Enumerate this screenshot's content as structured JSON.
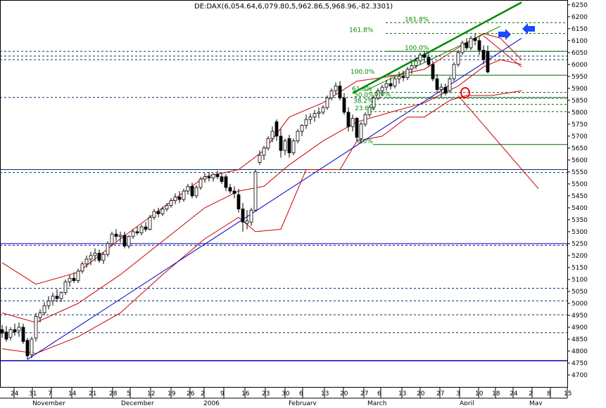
{
  "chart_data": {
    "type": "candlestick",
    "title": "DE:DAX(6,054.64,6,079.80,5,962.86,5,968.96,-82.3301)",
    "ylim": [
      4650,
      6270
    ],
    "y_ticks": [
      4700,
      4750,
      4800,
      4850,
      4900,
      4950,
      5000,
      5050,
      5100,
      5150,
      5200,
      5250,
      5300,
      5350,
      5400,
      5450,
      5500,
      5550,
      5600,
      5650,
      5700,
      5750,
      5800,
      5850,
      5900,
      5950,
      6000,
      6050,
      6100,
      6150,
      6200,
      6250
    ],
    "x_day_ticks": [
      "24",
      "31",
      "7",
      "14",
      "21",
      "28",
      "5",
      "12",
      "19",
      "26",
      "2",
      "9",
      "16",
      "23",
      "30",
      "6",
      "13",
      "20",
      "27",
      "6",
      "13",
      "20",
      "27",
      "3",
      "10",
      "18",
      "24",
      "2",
      "8",
      "15"
    ],
    "x_month_labels": [
      "November",
      "December",
      "2006",
      "February",
      "March",
      "April",
      "May"
    ],
    "fib_retracements": [
      {
        "label": "161.8%",
        "level": 6175
      },
      {
        "label": "161.8%",
        "level": 6130
      },
      {
        "label": "100.0%",
        "level": 6055
      },
      {
        "label": "100.0%",
        "level": 5955
      },
      {
        "label": "61.8%",
        "level": 5883
      },
      {
        "label": "50.0%",
        "level": 5858
      },
      {
        "label": "38.2%",
        "level": 5833
      },
      {
        "label": "23.6%",
        "level": 5803
      },
      {
        "label": "0.0%",
        "level": 5665
      },
      {
        "label": "0.0%",
        "level": 5862
      }
    ],
    "horizontal_levels": [
      6055,
      6035,
      6020,
      5862,
      5560,
      5548,
      5250,
      5243,
      5063,
      5010,
      4952,
      4877,
      4760
    ],
    "candles": [
      {
        "o": 4890,
        "h": 4910,
        "l": 4855,
        "c": 4875
      },
      {
        "o": 4880,
        "h": 4905,
        "l": 4840,
        "c": 4850
      },
      {
        "o": 4858,
        "h": 4900,
        "l": 4845,
        "c": 4890
      },
      {
        "o": 4890,
        "h": 4915,
        "l": 4865,
        "c": 4880
      },
      {
        "o": 4885,
        "h": 4920,
        "l": 4860,
        "c": 4900
      },
      {
        "o": 4900,
        "h": 4915,
        "l": 4830,
        "c": 4840
      },
      {
        "o": 4845,
        "h": 4855,
        "l": 4765,
        "c": 4780
      },
      {
        "o": 4785,
        "h": 4860,
        "l": 4770,
        "c": 4850
      },
      {
        "o": 4855,
        "h": 4960,
        "l": 4840,
        "c": 4945
      },
      {
        "o": 4940,
        "h": 4975,
        "l": 4920,
        "c": 4960
      },
      {
        "o": 4960,
        "h": 5005,
        "l": 4950,
        "c": 4990
      },
      {
        "o": 4990,
        "h": 5030,
        "l": 4975,
        "c": 5010
      },
      {
        "o": 5010,
        "h": 5045,
        "l": 4990,
        "c": 5030
      },
      {
        "o": 5030,
        "h": 5060,
        "l": 5005,
        "c": 5020
      },
      {
        "o": 5020,
        "h": 5050,
        "l": 5005,
        "c": 5045
      },
      {
        "o": 5045,
        "h": 5100,
        "l": 5035,
        "c": 5090
      },
      {
        "o": 5090,
        "h": 5120,
        "l": 5070,
        "c": 5105
      },
      {
        "o": 5105,
        "h": 5130,
        "l": 5085,
        "c": 5095
      },
      {
        "o": 5095,
        "h": 5145,
        "l": 5085,
        "c": 5135
      },
      {
        "o": 5135,
        "h": 5175,
        "l": 5125,
        "c": 5165
      },
      {
        "o": 5165,
        "h": 5200,
        "l": 5150,
        "c": 5185
      },
      {
        "o": 5185,
        "h": 5215,
        "l": 5160,
        "c": 5200
      },
      {
        "o": 5200,
        "h": 5230,
        "l": 5175,
        "c": 5210
      },
      {
        "o": 5210,
        "h": 5225,
        "l": 5170,
        "c": 5180
      },
      {
        "o": 5180,
        "h": 5215,
        "l": 5165,
        "c": 5205
      },
      {
        "o": 5205,
        "h": 5260,
        "l": 5195,
        "c": 5250
      },
      {
        "o": 5250,
        "h": 5300,
        "l": 5240,
        "c": 5290
      },
      {
        "o": 5290,
        "h": 5310,
        "l": 5260,
        "c": 5280
      },
      {
        "o": 5280,
        "h": 5300,
        "l": 5255,
        "c": 5285
      },
      {
        "o": 5285,
        "h": 5300,
        "l": 5230,
        "c": 5240
      },
      {
        "o": 5240,
        "h": 5285,
        "l": 5230,
        "c": 5280
      },
      {
        "o": 5280,
        "h": 5310,
        "l": 5270,
        "c": 5300
      },
      {
        "o": 5300,
        "h": 5320,
        "l": 5285,
        "c": 5295
      },
      {
        "o": 5295,
        "h": 5330,
        "l": 5285,
        "c": 5320
      },
      {
        "o": 5320,
        "h": 5340,
        "l": 5300,
        "c": 5310
      },
      {
        "o": 5310,
        "h": 5370,
        "l": 5305,
        "c": 5360
      },
      {
        "o": 5360,
        "h": 5395,
        "l": 5350,
        "c": 5385
      },
      {
        "o": 5385,
        "h": 5400,
        "l": 5360,
        "c": 5375
      },
      {
        "o": 5375,
        "h": 5405,
        "l": 5365,
        "c": 5395
      },
      {
        "o": 5395,
        "h": 5420,
        "l": 5385,
        "c": 5410
      },
      {
        "o": 5410,
        "h": 5440,
        "l": 5400,
        "c": 5430
      },
      {
        "o": 5430,
        "h": 5460,
        "l": 5415,
        "c": 5445
      },
      {
        "o": 5445,
        "h": 5470,
        "l": 5420,
        "c": 5435
      },
      {
        "o": 5435,
        "h": 5480,
        "l": 5425,
        "c": 5470
      },
      {
        "o": 5470,
        "h": 5500,
        "l": 5455,
        "c": 5490
      },
      {
        "o": 5490,
        "h": 5505,
        "l": 5440,
        "c": 5450
      },
      {
        "o": 5450,
        "h": 5495,
        "l": 5440,
        "c": 5485
      },
      {
        "o": 5485,
        "h": 5530,
        "l": 5475,
        "c": 5520
      },
      {
        "o": 5520,
        "h": 5545,
        "l": 5505,
        "c": 5530
      },
      {
        "o": 5530,
        "h": 5550,
        "l": 5510,
        "c": 5525
      },
      {
        "o": 5525,
        "h": 5545,
        "l": 5510,
        "c": 5540
      },
      {
        "o": 5540,
        "h": 5555,
        "l": 5520,
        "c": 5530
      },
      {
        "o": 5530,
        "h": 5545,
        "l": 5500,
        "c": 5510
      },
      {
        "o": 5530,
        "h": 5540,
        "l": 5470,
        "c": 5485
      },
      {
        "o": 5485,
        "h": 5500,
        "l": 5460,
        "c": 5470
      },
      {
        "o": 5470,
        "h": 5490,
        "l": 5440,
        "c": 5460
      },
      {
        "o": 5455,
        "h": 5480,
        "l": 5380,
        "c": 5395
      },
      {
        "o": 5395,
        "h": 5420,
        "l": 5300,
        "c": 5340
      },
      {
        "o": 5335,
        "h": 5390,
        "l": 5310,
        "c": 5345
      },
      {
        "o": 5340,
        "h": 5400,
        "l": 5325,
        "c": 5390
      },
      {
        "o": 5390,
        "h": 5560,
        "l": 5385,
        "c": 5550
      },
      {
        "o": 5590,
        "h": 5640,
        "l": 5580,
        "c": 5620
      },
      {
        "o": 5620,
        "h": 5660,
        "l": 5600,
        "c": 5650
      },
      {
        "o": 5650,
        "h": 5700,
        "l": 5640,
        "c": 5690
      },
      {
        "o": 5690,
        "h": 5740,
        "l": 5675,
        "c": 5720
      },
      {
        "o": 5760,
        "h": 5770,
        "l": 5680,
        "c": 5700
      },
      {
        "o": 5700,
        "h": 5730,
        "l": 5610,
        "c": 5640
      },
      {
        "o": 5640,
        "h": 5690,
        "l": 5620,
        "c": 5680
      },
      {
        "o": 5690,
        "h": 5705,
        "l": 5610,
        "c": 5630
      },
      {
        "o": 5630,
        "h": 5690,
        "l": 5620,
        "c": 5680
      },
      {
        "o": 5680,
        "h": 5730,
        "l": 5670,
        "c": 5720
      },
      {
        "o": 5720,
        "h": 5750,
        "l": 5700,
        "c": 5745
      },
      {
        "o": 5745,
        "h": 5790,
        "l": 5730,
        "c": 5770
      },
      {
        "o": 5770,
        "h": 5795,
        "l": 5750,
        "c": 5780
      },
      {
        "o": 5780,
        "h": 5810,
        "l": 5760,
        "c": 5795
      },
      {
        "o": 5795,
        "h": 5820,
        "l": 5775,
        "c": 5800
      },
      {
        "o": 5800,
        "h": 5830,
        "l": 5790,
        "c": 5820
      },
      {
        "o": 5820,
        "h": 5870,
        "l": 5810,
        "c": 5860
      },
      {
        "o": 5860,
        "h": 5900,
        "l": 5850,
        "c": 5890
      },
      {
        "o": 5890,
        "h": 5925,
        "l": 5875,
        "c": 5910
      },
      {
        "o": 5910,
        "h": 5930,
        "l": 5850,
        "c": 5860
      },
      {
        "o": 5860,
        "h": 5880,
        "l": 5790,
        "c": 5800
      },
      {
        "o": 5800,
        "h": 5820,
        "l": 5720,
        "c": 5740
      },
      {
        "o": 5740,
        "h": 5790,
        "l": 5720,
        "c": 5775
      },
      {
        "o": 5775,
        "h": 5780,
        "l": 5680,
        "c": 5695
      },
      {
        "o": 5690,
        "h": 5760,
        "l": 5670,
        "c": 5750
      },
      {
        "o": 5750,
        "h": 5800,
        "l": 5740,
        "c": 5790
      },
      {
        "o": 5790,
        "h": 5830,
        "l": 5780,
        "c": 5820
      },
      {
        "o": 5820,
        "h": 5870,
        "l": 5810,
        "c": 5860
      },
      {
        "o": 5860,
        "h": 5900,
        "l": 5850,
        "c": 5890
      },
      {
        "o": 5890,
        "h": 5915,
        "l": 5870,
        "c": 5905
      },
      {
        "o": 5905,
        "h": 5935,
        "l": 5890,
        "c": 5920
      },
      {
        "o": 5920,
        "h": 5945,
        "l": 5895,
        "c": 5910
      },
      {
        "o": 5910,
        "h": 5950,
        "l": 5900,
        "c": 5940
      },
      {
        "o": 5940,
        "h": 5970,
        "l": 5920,
        "c": 5950
      },
      {
        "o": 5950,
        "h": 5975,
        "l": 5930,
        "c": 5945
      },
      {
        "o": 5945,
        "h": 5990,
        "l": 5935,
        "c": 5980
      },
      {
        "o": 5980,
        "h": 6010,
        "l": 5960,
        "c": 5995
      },
      {
        "o": 5995,
        "h": 6030,
        "l": 5980,
        "c": 6015
      },
      {
        "o": 6015,
        "h": 6050,
        "l": 6000,
        "c": 6040
      },
      {
        "o": 6040,
        "h": 6055,
        "l": 6010,
        "c": 6030
      },
      {
        "o": 6030,
        "h": 6045,
        "l": 5990,
        "c": 6000
      },
      {
        "o": 6000,
        "h": 6015,
        "l": 5930,
        "c": 5940
      },
      {
        "o": 5940,
        "h": 5960,
        "l": 5880,
        "c": 5895
      },
      {
        "o": 5895,
        "h": 5920,
        "l": 5860,
        "c": 5905
      },
      {
        "o": 5905,
        "h": 5920,
        "l": 5870,
        "c": 5880
      },
      {
        "o": 5890,
        "h": 5950,
        "l": 5880,
        "c": 5940
      },
      {
        "o": 5940,
        "h": 6010,
        "l": 5930,
        "c": 6000
      },
      {
        "o": 6000,
        "h": 6060,
        "l": 5990,
        "c": 6050
      },
      {
        "o": 6050,
        "h": 6100,
        "l": 6040,
        "c": 6090
      },
      {
        "o": 6090,
        "h": 6110,
        "l": 6060,
        "c": 6070
      },
      {
        "o": 6070,
        "h": 6120,
        "l": 6060,
        "c": 6110
      },
      {
        "o": 6110,
        "h": 6130,
        "l": 6080,
        "c": 6100
      },
      {
        "o": 6100,
        "h": 6115,
        "l": 6040,
        "c": 6060
      },
      {
        "o": 6060,
        "h": 6080,
        "l": 6000,
        "c": 6020
      },
      {
        "o": 6054.64,
        "h": 6079.8,
        "l": 5962.86,
        "c": 5968.96
      }
    ],
    "bollinger_upper": [
      [
        0,
        5170
      ],
      [
        8,
        5080
      ],
      [
        18,
        5130
      ],
      [
        28,
        5270
      ],
      [
        38,
        5400
      ],
      [
        48,
        5530
      ],
      [
        56,
        5560
      ],
      [
        62,
        5640
      ],
      [
        68,
        5780
      ],
      [
        76,
        5840
      ],
      [
        84,
        5930
      ],
      [
        92,
        5950
      ],
      [
        100,
        5980
      ],
      [
        108,
        6070
      ],
      [
        114,
        6130
      ],
      [
        118,
        6110
      ],
      [
        123,
        6020
      ]
    ],
    "bollinger_middle": [
      [
        0,
        4960
      ],
      [
        8,
        4920
      ],
      [
        18,
        5000
      ],
      [
        28,
        5120
      ],
      [
        38,
        5260
      ],
      [
        48,
        5400
      ],
      [
        56,
        5470
      ],
      [
        62,
        5490
      ],
      [
        68,
        5580
      ],
      [
        76,
        5680
      ],
      [
        84,
        5760
      ],
      [
        92,
        5800
      ],
      [
        100,
        5840
      ],
      [
        108,
        5910
      ],
      [
        114,
        5990
      ],
      [
        118,
        6020
      ],
      [
        123,
        6000
      ]
    ],
    "bollinger_lower": [
      [
        0,
        4810
      ],
      [
        8,
        4790
      ],
      [
        18,
        4860
      ],
      [
        28,
        4960
      ],
      [
        38,
        5120
      ],
      [
        48,
        5270
      ],
      [
        56,
        5360
      ],
      [
        60,
        5300
      ],
      [
        66,
        5310
      ],
      [
        72,
        5560
      ],
      [
        80,
        5560
      ],
      [
        84,
        5680
      ],
      [
        90,
        5700
      ],
      [
        96,
        5780
      ],
      [
        100,
        5780
      ],
      [
        106,
        5850
      ],
      [
        110,
        5870
      ],
      [
        116,
        5870
      ],
      [
        123,
        5890
      ]
    ],
    "trend_lines": [
      {
        "color": "blue",
        "points": [
          [
            6,
            4765
          ],
          [
            123,
            6110
          ]
        ]
      },
      {
        "color": "green",
        "points": [
          [
            83,
            5880
          ],
          [
            123,
            6260
          ]
        ]
      },
      {
        "color": "green",
        "points": [
          [
            86,
            5890
          ],
          [
            118,
            6160
          ]
        ]
      },
      {
        "color": "red",
        "points": [
          [
            114,
            6120
          ],
          [
            123,
            5990
          ]
        ]
      },
      {
        "color": "red",
        "points": [
          [
            108,
            5870
          ],
          [
            127,
            5480
          ]
        ]
      }
    ]
  }
}
